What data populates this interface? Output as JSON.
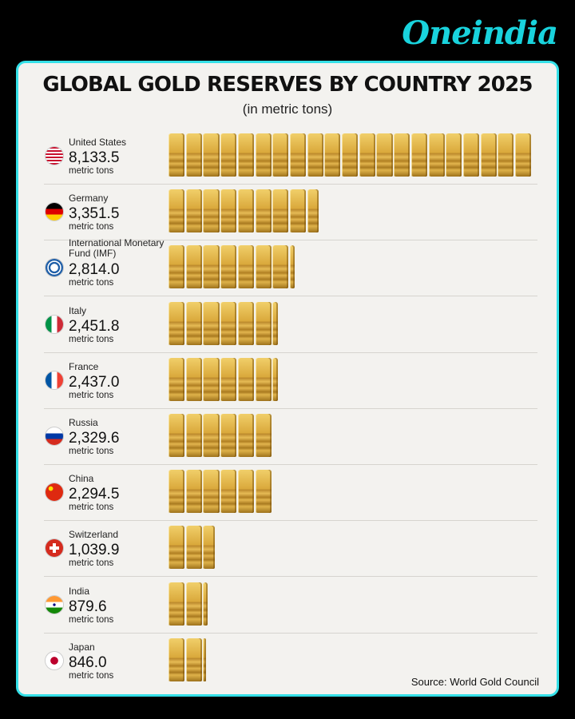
{
  "brand": {
    "logo_text": "Oneindia",
    "accent": "#19d3dd"
  },
  "chart_data": {
    "type": "bar",
    "orientation": "horizontal",
    "title": "GLOBAL GOLD RESERVES BY COUNTRY 2025",
    "subtitle": "(in metric tons)",
    "unit_label": "metric tons",
    "categories": [
      "United States",
      "Germany",
      "International Monetary Fund (IMF)",
      "Italy",
      "France",
      "Russia",
      "China",
      "Switzerland",
      "India",
      "Japan"
    ],
    "value_labels": [
      "8,133.5",
      "3,351.5",
      "2,814.0",
      "2,451.8",
      "2,437.0",
      "2,329.6",
      "2,294.5",
      "1,039.9",
      "879.6",
      "846.0"
    ],
    "values": [
      8133.5,
      3351.5,
      2814.0,
      2451.8,
      2437.0,
      2329.6,
      2294.5,
      1039.9,
      879.6,
      846.0
    ],
    "flags": [
      "us",
      "de",
      "imf",
      "it",
      "fr",
      "ru",
      "cn",
      "ch",
      "in",
      "jp"
    ],
    "bar_style": "stacked gold bars",
    "bar_color": "#d9a83a",
    "source": "Source: World Gold Council"
  }
}
